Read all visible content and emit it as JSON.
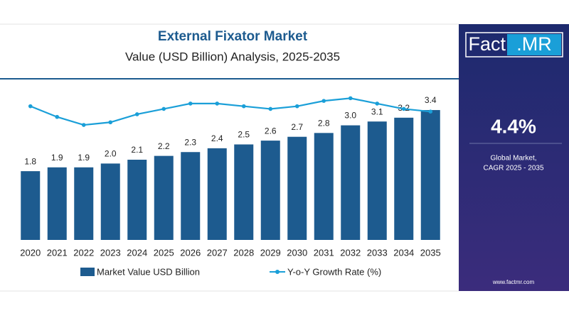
{
  "chart_data": {
    "type": "bar",
    "title": "External Fixator Market",
    "subtitle": "Value (USD Billion) Analysis, 2025-2035",
    "categories": [
      "2020",
      "2021",
      "2022",
      "2023",
      "2024",
      "2025",
      "2026",
      "2027",
      "2028",
      "2029",
      "2030",
      "2031",
      "2032",
      "2033",
      "2034",
      "2035"
    ],
    "series": [
      {
        "name": "Market Value USD Billion",
        "type": "bar",
        "color": "#1d5b8f",
        "values": [
          1.8,
          1.9,
          1.9,
          2.0,
          2.1,
          2.2,
          2.3,
          2.4,
          2.5,
          2.6,
          2.7,
          2.8,
          3.0,
          3.1,
          3.2,
          3.4
        ],
        "value_labels": [
          "1.8",
          "1.9",
          "1.9",
          "2.0",
          "2.1",
          "2.2",
          "2.3",
          "2.4",
          "2.5",
          "2.6",
          "2.7",
          "2.8",
          "3.0",
          "3.1",
          "3.2",
          "3.4"
        ]
      },
      {
        "name": "Y-o-Y Growth Rate (%)",
        "type": "line",
        "axis": "y2",
        "color": "#1a9fd8",
        "values": [
          5.0,
          4.6,
          4.3,
          4.4,
          4.7,
          4.9,
          5.1,
          5.1,
          5.0,
          4.9,
          5.0,
          5.2,
          5.3,
          5.1,
          4.9,
          4.8
        ]
      }
    ],
    "ylim": [
      0,
      4.2
    ],
    "y2lim": [
      0,
      6
    ],
    "grid": false
  },
  "side_panel": {
    "logo_left": "Fact",
    "logo_right": ".MR",
    "cagr": "4.4%",
    "caption_1": "Global Market,",
    "caption_2": "CAGR 2025 - 2035",
    "website": "www.factmr.com"
  }
}
